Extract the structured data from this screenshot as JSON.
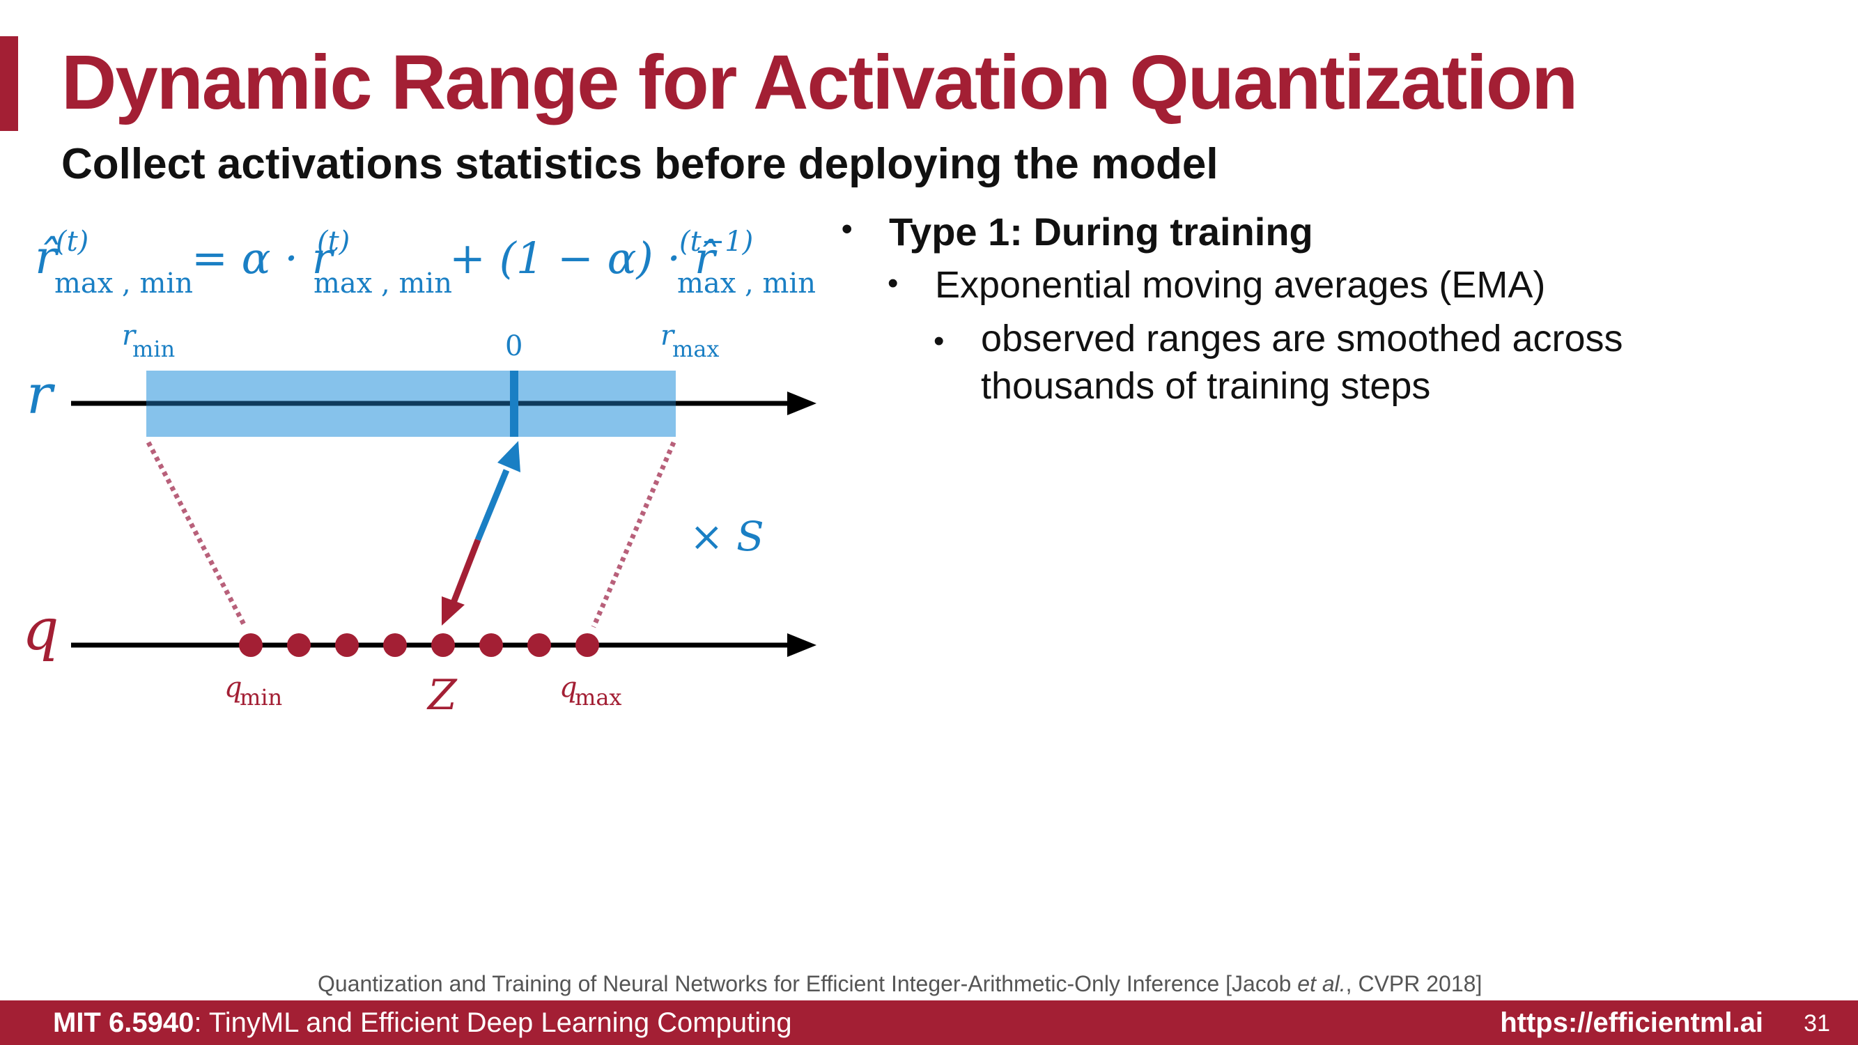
{
  "slide": {
    "title": "Dynamic Range for Activation Quantization",
    "subtitle": "Collect activations statistics before deploying the model"
  },
  "bullets": {
    "level1": "Type 1: During training",
    "level2": "Exponential moving averages (EMA)",
    "level3": "observed ranges are smoothed across thousands of training steps",
    "marker": "•"
  },
  "equation": {
    "lhs_symbol": "r̂",
    "lhs_sup": "(t)",
    "lhs_sub": "max , min",
    "equals_alpha": "= α · r",
    "mid_sup": "(t)",
    "mid_sub": "max , min",
    "plus_term": "+ (1 − α) · r̂",
    "rhs_sup": "(t−1)",
    "rhs_sub": "max , min"
  },
  "diagram": {
    "r_axis_label": "r",
    "q_axis_label": "q",
    "r_min_base": "r",
    "r_min_sub": "min",
    "zero_label": "0",
    "r_max_base": "r",
    "r_max_sub": "max",
    "scale_label": "× S",
    "q_min_base": "q",
    "q_min_sub": "min",
    "z_label": "Z",
    "q_max_base": "q",
    "q_max_sub": "max",
    "colors": {
      "blue": "#1a7fc4",
      "range_fill": "#7fbfea",
      "red": "#a31f34",
      "dotted": "#b8607a"
    }
  },
  "citation": {
    "text": "Quantization and Training of Neural Networks for Efficient Integer-Arithmetic-Only Inference  [Jacob ",
    "etal": "et al.",
    "tail": ", CVPR 2018]"
  },
  "footer": {
    "course_code": "MIT 6.5940",
    "course_name": ": TinyML and Efficient Deep Learning Computing",
    "url": "https://efficientml.ai",
    "page": "31"
  }
}
